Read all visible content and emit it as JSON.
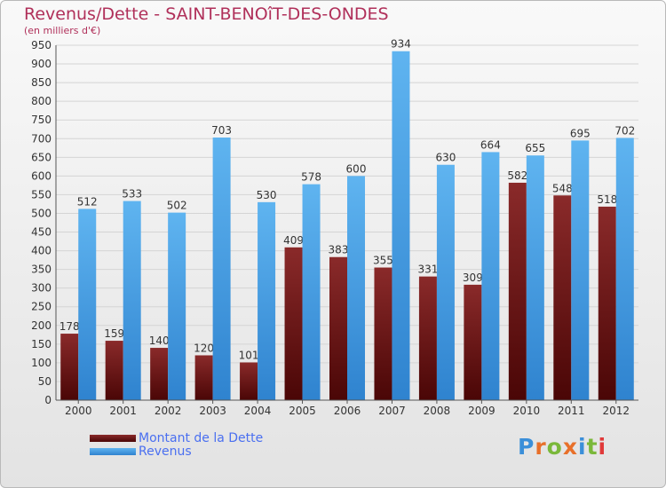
{
  "title": "Revenus/Dette - SAINT-BENOîT-DES-ONDES",
  "subtitle": "(en milliers d'€)",
  "brand": "Proxiti",
  "colors": {
    "dette": "#7a1c1c",
    "revenus": "#4aa3e8",
    "title": "#b0305a",
    "legend_text": "#4a6ff0"
  },
  "legend": {
    "dette_label": "Montant de la Dette",
    "revenus_label": "Revenus"
  },
  "chart_data": {
    "type": "bar",
    "categories": [
      "2000",
      "2001",
      "2002",
      "2003",
      "2004",
      "2005",
      "2006",
      "2007",
      "2008",
      "2009",
      "2010",
      "2011",
      "2012"
    ],
    "series": [
      {
        "name": "Montant de la Dette",
        "values": [
          178,
          159,
          140,
          120,
          101,
          409,
          383,
          355,
          331,
          309,
          582,
          548,
          518
        ]
      },
      {
        "name": "Revenus",
        "values": [
          512,
          533,
          502,
          703,
          530,
          578,
          600,
          934,
          630,
          664,
          655,
          695,
          702
        ]
      }
    ],
    "yticks": [
      0,
      50,
      100,
      150,
      200,
      250,
      300,
      350,
      400,
      450,
      500,
      550,
      600,
      650,
      700,
      750,
      800,
      850,
      900,
      950
    ],
    "ylim": [
      0,
      950
    ],
    "grid": true,
    "legend_position": "bottom-left"
  }
}
